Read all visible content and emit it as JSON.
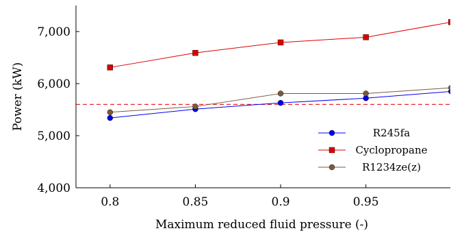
{
  "chart_data": {
    "type": "line",
    "xlabel": "Maximum reduced fluid pressure (-)",
    "ylabel": "Power (kW)",
    "xlim": [
      0.78,
      0.9995
    ],
    "ylim": [
      4000,
      7500
    ],
    "xticks": [
      "0.8",
      "0.85",
      "0.9",
      "0.95"
    ],
    "xtick_values": [
      0.8,
      0.85,
      0.9,
      0.95
    ],
    "yticks": [
      "4,000",
      "5,000",
      "6,000",
      "7,000"
    ],
    "ytick_values": [
      4000,
      5000,
      6000,
      7000
    ],
    "x": [
      0.8,
      0.85,
      0.9,
      0.95,
      1.0
    ],
    "series": [
      {
        "name": "R245fa",
        "color": "#0000ee",
        "marker": "circle",
        "values": [
          5340,
          5510,
          5630,
          5720,
          5850
        ]
      },
      {
        "name": "Cyclopropane",
        "color": "#dd0000",
        "marker": "square",
        "values": [
          6310,
          6590,
          6790,
          6890,
          7180
        ]
      },
      {
        "name": "R1234ze(z)",
        "color": "#7a5a3a",
        "marker": "circle",
        "values": [
          5450,
          5560,
          5810,
          5810,
          5920
        ]
      }
    ],
    "reference_line": {
      "y": 5600,
      "color": "#e8262e",
      "style": "dashed"
    },
    "legend_position": "bottom-right",
    "grid": false
  }
}
